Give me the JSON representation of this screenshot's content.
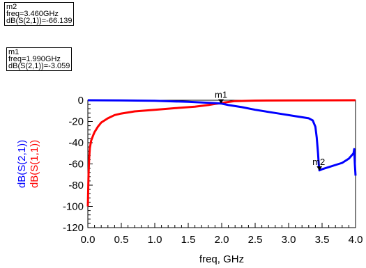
{
  "markers": [
    {
      "name": "m2",
      "freq": "freq=3.460GHz",
      "value": "dB(S(2,1))=-66.139"
    },
    {
      "name": "m1",
      "freq": "freq=1.990GHz",
      "value": "dB(S(2,1))=-3.059"
    }
  ],
  "chart_data": {
    "type": "line",
    "xlabel": "freq, GHz",
    "ylabels": [
      "dB(S(2,1))",
      "dB(S(1,1))"
    ],
    "xlim": [
      0.0,
      4.0
    ],
    "ylim": [
      -120,
      0
    ],
    "xticks": [
      "0.0",
      "0.5",
      "1.0",
      "1.5",
      "2.0",
      "2.5",
      "3.0",
      "3.5",
      "4.0"
    ],
    "yticks": [
      "0",
      "-20",
      "-40",
      "-60",
      "-80",
      "-100",
      "-120"
    ],
    "grid": false,
    "series": [
      {
        "name": "dB(S(2,1))",
        "color": "#0000ff",
        "x": [
          0.0,
          0.5,
          1.0,
          1.5,
          1.9,
          1.99,
          2.1,
          2.3,
          2.5,
          2.7,
          2.9,
          3.1,
          3.2,
          3.3,
          3.36,
          3.4,
          3.42,
          3.44,
          3.45,
          3.46,
          3.5,
          3.6,
          3.7,
          3.8,
          3.9,
          3.97,
          3.98,
          3.99,
          4.0
        ],
        "y": [
          0,
          -0.2,
          -0.5,
          -1.5,
          -2.7,
          -3.06,
          -4.5,
          -6.5,
          -9,
          -11,
          -13,
          -15,
          -16,
          -17,
          -19,
          -25,
          -35,
          -50,
          -60,
          -66.1,
          -65,
          -63,
          -61,
          -59,
          -55,
          -50,
          -46,
          -60,
          -71
        ]
      },
      {
        "name": "dB(S(1,1))",
        "color": "#ff0000",
        "x": [
          0.0,
          0.005,
          0.01,
          0.02,
          0.03,
          0.05,
          0.08,
          0.1,
          0.15,
          0.2,
          0.3,
          0.4,
          0.5,
          0.7,
          1.0,
          1.3,
          1.6,
          1.8,
          1.9,
          1.99,
          2.05,
          2.2,
          2.5,
          3.0,
          3.5,
          4.0
        ],
        "y": [
          -100,
          -85,
          -70,
          -55,
          -45,
          -38,
          -33,
          -30,
          -25,
          -21,
          -17,
          -14,
          -12.5,
          -10.5,
          -9,
          -7.5,
          -6,
          -4.5,
          -3.5,
          -2.8,
          -2,
          -0.8,
          -0.3,
          -0.1,
          -0.05,
          0
        ]
      }
    ],
    "markers": [
      {
        "name": "m1",
        "x": 1.99,
        "y": -3.059
      },
      {
        "name": "m2",
        "x": 3.46,
        "y": -66.139
      }
    ]
  }
}
